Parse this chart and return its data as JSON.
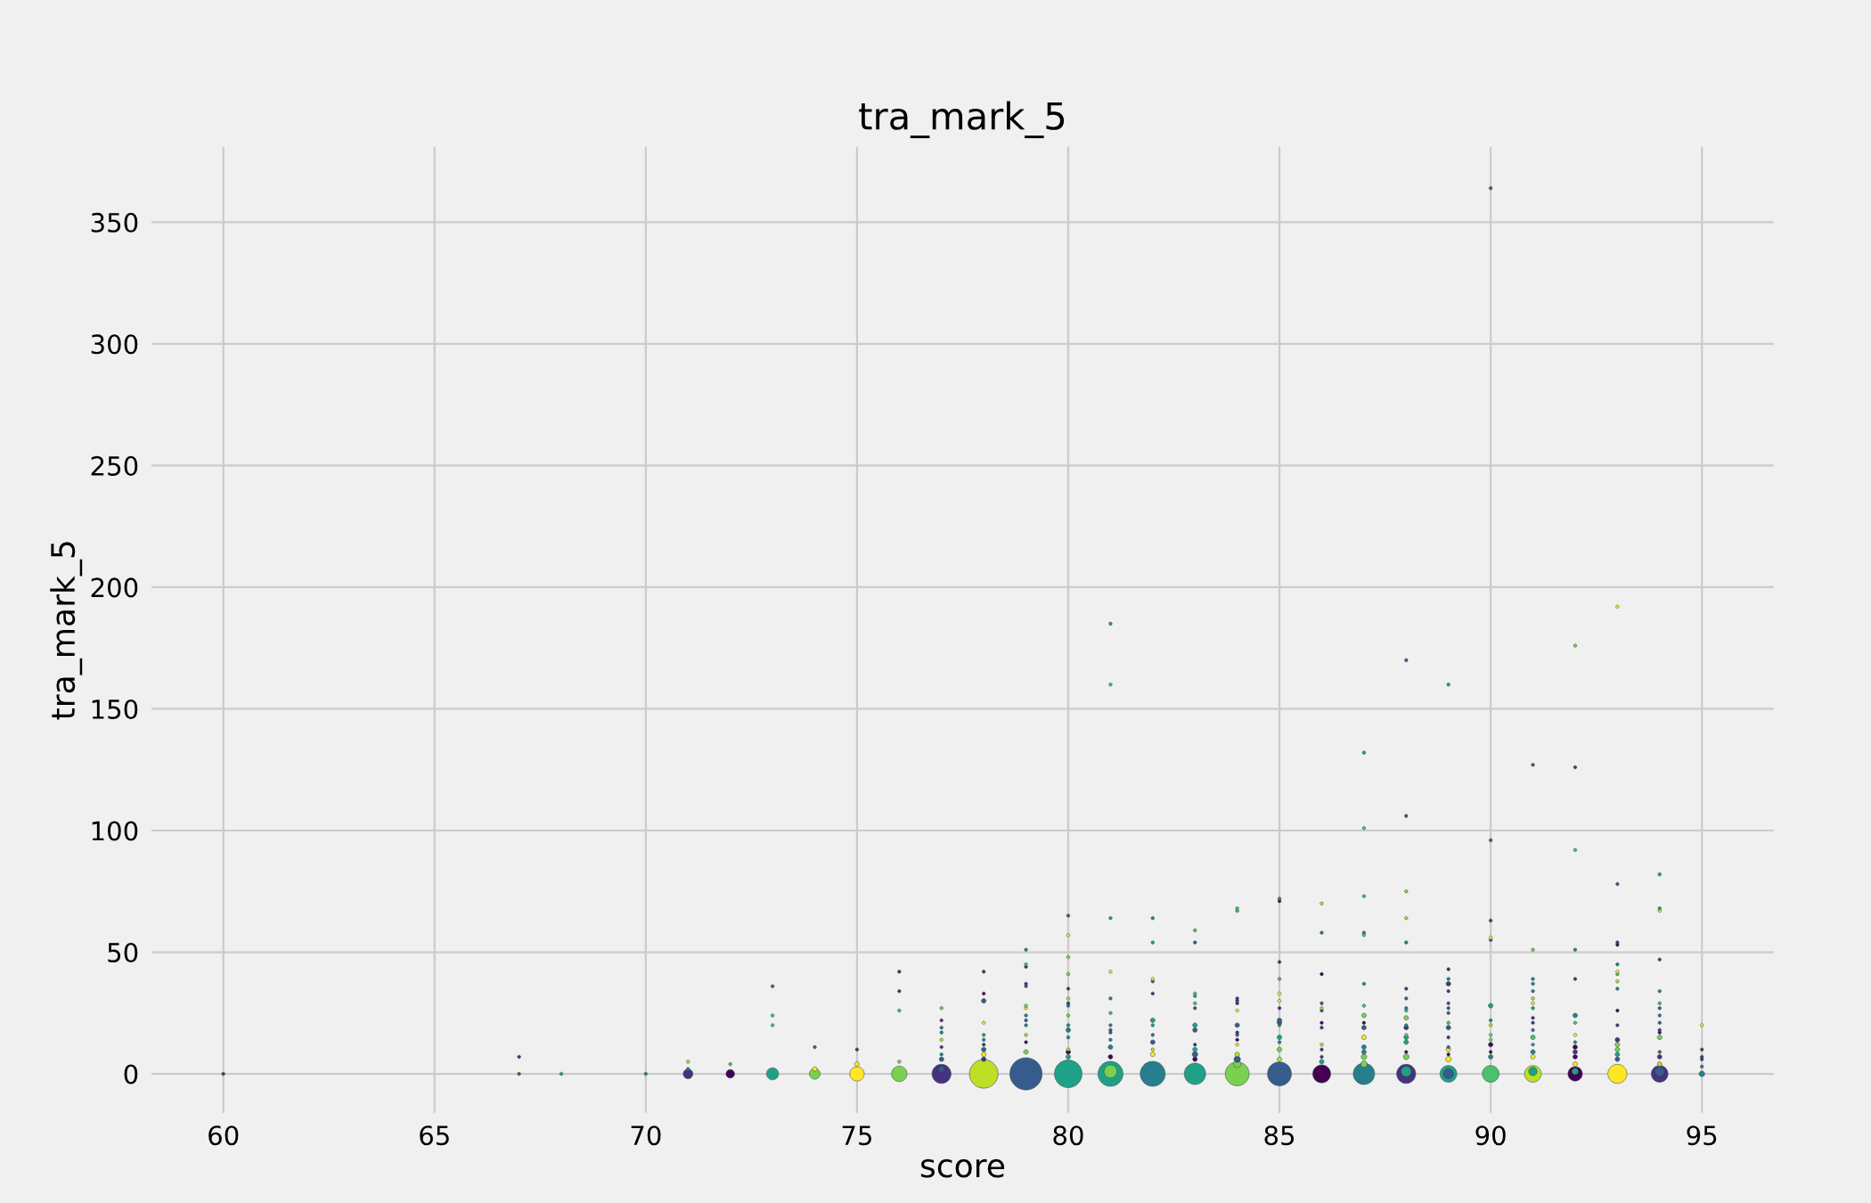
{
  "chart_data": {
    "type": "bubble",
    "title": "tra_mark_5",
    "xlabel": "score",
    "ylabel": "tra_mark_5",
    "xlim": [
      58.3,
      96.7
    ],
    "ylim": [
      -16,
      381
    ],
    "xticks": [
      60,
      65,
      70,
      75,
      80,
      85,
      90,
      95
    ],
    "yticks": [
      0,
      50,
      100,
      150,
      200,
      250,
      300,
      350
    ],
    "grid": true,
    "series": [
      {
        "x": [
          60
        ],
        "values": [
          0
        ],
        "sizes": [
          0.01
        ],
        "colors": [
          "#46327e"
        ]
      },
      {
        "x": [
          67,
          67
        ],
        "values": [
          0,
          7
        ],
        "sizes": [
          0.01,
          0.01
        ],
        "colors": [
          "#365c8d",
          "#46327e"
        ]
      },
      {
        "x": [
          68
        ],
        "values": [
          0
        ],
        "sizes": [
          0.01
        ],
        "colors": [
          "#1fa187"
        ]
      },
      {
        "x": [
          70
        ],
        "values": [
          0
        ],
        "sizes": [
          0.01
        ],
        "colors": [
          "#277f8e"
        ]
      },
      {
        "x": [
          71,
          71,
          71
        ],
        "values": [
          0,
          2,
          5
        ],
        "sizes": [
          0.09,
          0.01,
          0.01
        ],
        "colors": [
          "#46327e",
          "#277f8e",
          "#bddf26"
        ]
      },
      {
        "x": [
          72,
          72
        ],
        "values": [
          0,
          4
        ],
        "sizes": [
          0.07,
          0.01
        ],
        "colors": [
          "#440154",
          "#4ac16d"
        ]
      },
      {
        "x": [
          73,
          73,
          73,
          73
        ],
        "values": [
          0,
          36,
          24,
          20
        ],
        "sizes": [
          0.14,
          0.01,
          0.01,
          0.01
        ],
        "colors": [
          "#1fa187",
          "#365c8d",
          "#4ac16d",
          "#4ac16d"
        ]
      },
      {
        "x": [
          74,
          74,
          74
        ],
        "values": [
          0,
          2,
          11
        ],
        "sizes": [
          0.11,
          0.02,
          0.01
        ],
        "colors": [
          "#7ad151",
          "#fde725",
          "#365c8d"
        ]
      },
      {
        "x": [
          75,
          75,
          75
        ],
        "values": [
          0,
          4,
          10
        ],
        "sizes": [
          0.2,
          0.02,
          0.01
        ],
        "colors": [
          "#fde725",
          "#fde725",
          "#46327e"
        ]
      },
      {
        "x": [
          76,
          76,
          76,
          76,
          76
        ],
        "values": [
          0,
          5,
          26,
          34,
          42
        ],
        "sizes": [
          0.23,
          0.01,
          0.01,
          0.01,
          0.01
        ],
        "colors": [
          "#7ad151",
          "#7ad151",
          "#4ac16d",
          "#46327e",
          "#46327e"
        ]
      },
      {
        "x": [
          77,
          77,
          77,
          77,
          77,
          77,
          77,
          77,
          77,
          77
        ],
        "values": [
          0,
          2,
          6,
          8,
          11,
          14,
          17,
          19,
          22,
          27
        ],
        "sizes": [
          0.35,
          0.03,
          0.02,
          0.01,
          0.01,
          0.01,
          0.01,
          0.01,
          0.01,
          0.01
        ],
        "colors": [
          "#46327e",
          "#365c8d",
          "#365c8d",
          "#277f8e",
          "#46327e",
          "#bddf26",
          "#277f8e",
          "#277f8e",
          "#46327e",
          "#7ad151"
        ]
      },
      {
        "x": [
          78,
          78,
          78,
          78,
          78,
          78,
          78,
          78,
          78,
          78,
          78
        ],
        "values": [
          0,
          6,
          8,
          10,
          12,
          14,
          16,
          21,
          30,
          33,
          42
        ],
        "sizes": [
          0.79,
          0.02,
          0.02,
          0.02,
          0.01,
          0.01,
          0.01,
          0.01,
          0.02,
          0.01,
          0.01
        ],
        "colors": [
          "#bddf26",
          "#46327e",
          "#fde725",
          "#365c8d",
          "#46327e",
          "#277f8e",
          "#1fa187",
          "#fde725",
          "#365c8d",
          "#440154",
          "#46327e"
        ]
      },
      {
        "x": [
          79,
          79,
          79,
          79,
          79,
          79,
          79,
          79,
          79,
          79,
          79,
          79,
          79,
          79
        ],
        "values": [
          0,
          9,
          13,
          16,
          20,
          22,
          24,
          27,
          28,
          36,
          37,
          44,
          45,
          51
        ],
        "sizes": [
          1,
          0.02,
          0.01,
          0.01,
          0.01,
          0.01,
          0.01,
          0.01,
          0.01,
          0.01,
          0.01,
          0.01,
          0.01,
          0.01
        ],
        "colors": [
          "#365c8d",
          "#7ad151",
          "#440154",
          "#bddf26",
          "#277f8e",
          "#365c8d",
          "#277f8e",
          "#fde725",
          "#7ad151",
          "#365c8d",
          "#46327e",
          "#46327e",
          "#4ac16d",
          "#277f8e"
        ]
      },
      {
        "x": [
          80,
          80,
          80,
          80,
          80,
          80,
          80,
          80,
          80,
          80,
          80,
          80,
          80,
          80,
          80,
          80
        ],
        "values": [
          0,
          7,
          9,
          10,
          15,
          18,
          20,
          24,
          28,
          29,
          31,
          35,
          41,
          48,
          57,
          65
        ],
        "sizes": [
          0.73,
          0.02,
          0.02,
          0.01,
          0.01,
          0.02,
          0.01,
          0.01,
          0.01,
          0.01,
          0.01,
          0.01,
          0.01,
          0.01,
          0.01,
          0.01
        ],
        "colors": [
          "#1fa187",
          "#1fa187",
          "#440154",
          "#bddf26",
          "#277f8e",
          "#277f8e",
          "#277f8e",
          "#7ad151",
          "#277f8e",
          "#46327e",
          "#bddf26",
          "#46327e",
          "#7ad151",
          "#7ad151",
          "#fde725",
          "#365c8d"
        ]
      },
      {
        "x": [
          81,
          81,
          81,
          81,
          81,
          81,
          81,
          81,
          81,
          81,
          81,
          81,
          81,
          81
        ],
        "values": [
          0,
          1,
          7,
          11,
          14,
          17,
          18,
          20,
          25,
          31,
          42,
          64,
          160,
          185
        ],
        "sizes": [
          0.6,
          0.16,
          0.02,
          0.02,
          0.01,
          0.01,
          0.01,
          0.01,
          0.01,
          0.01,
          0.01,
          0.01,
          0.01,
          0.01
        ],
        "colors": [
          "#1fa187",
          "#7ad151",
          "#440154",
          "#277f8e",
          "#277f8e",
          "#365c8d",
          "#365c8d",
          "#277f8e",
          "#4ac16d",
          "#277f8e",
          "#fde725",
          "#1fa187",
          "#4ac16d",
          "#1fa187"
        ]
      },
      {
        "x": [
          82,
          82,
          82,
          82,
          82,
          82,
          82,
          82,
          82,
          82,
          82,
          82
        ],
        "values": [
          0,
          8,
          10,
          13,
          16,
          20,
          22,
          33,
          38,
          39,
          54,
          64
        ],
        "sizes": [
          0.6,
          0.02,
          0.01,
          0.02,
          0.01,
          0.01,
          0.02,
          0.01,
          0.01,
          0.01,
          0.01,
          0.01
        ],
        "colors": [
          "#277f8e",
          "#fde725",
          "#bddf26",
          "#365c8d",
          "#277f8e",
          "#1fa187",
          "#1fa187",
          "#46327e",
          "#365c8d",
          "#fde725",
          "#1fa187",
          "#277f8e"
        ]
      },
      {
        "x": [
          83,
          83,
          83,
          83,
          83,
          83,
          83,
          83,
          83,
          83,
          83,
          83,
          83
        ],
        "values": [
          0,
          6,
          8,
          10,
          12,
          18,
          20,
          27,
          29,
          32,
          33,
          54,
          59
        ],
        "sizes": [
          0.44,
          0.02,
          0.03,
          0.02,
          0.01,
          0.02,
          0.02,
          0.01,
          0.01,
          0.01,
          0.01,
          0.01,
          0.01
        ],
        "colors": [
          "#1fa187",
          "#440154",
          "#365c8d",
          "#1fa187",
          "#46327e",
          "#365c8d",
          "#1fa187",
          "#365c8d",
          "#4ac16d",
          "#1fa187",
          "#4ac16d",
          "#365c8d",
          "#4ac16d"
        ]
      },
      {
        "x": [
          84,
          84,
          84,
          84,
          84,
          84,
          84,
          84,
          84,
          84,
          84,
          84,
          84,
          84,
          84
        ],
        "values": [
          0,
          4,
          6,
          8,
          12,
          14,
          16,
          17,
          20,
          26,
          29,
          30,
          31,
          67,
          68
        ],
        "sizes": [
          0.55,
          0.05,
          0.04,
          0.02,
          0.01,
          0.01,
          0.01,
          0.01,
          0.02,
          0.01,
          0.01,
          0.01,
          0.01,
          0.01,
          0.01
        ],
        "colors": [
          "#7ad151",
          "#7ad151",
          "#365c8d",
          "#bddf26",
          "#fde725",
          "#440154",
          "#365c8d",
          "#46327e",
          "#365c8d",
          "#fde725",
          "#46327e",
          "#46327e",
          "#46327e",
          "#4ac16d",
          "#4ac16d"
        ]
      },
      {
        "x": [
          85,
          85,
          85,
          85,
          85,
          85,
          85,
          85,
          85,
          85,
          85,
          85,
          85,
          85,
          85
        ],
        "values": [
          0,
          6,
          10,
          13,
          15,
          20,
          21,
          22,
          27,
          30,
          33,
          39,
          46,
          71,
          72
        ],
        "sizes": [
          0.55,
          0.02,
          0.02,
          0.01,
          0.02,
          0.01,
          0.02,
          0.02,
          0.01,
          0.01,
          0.01,
          0.01,
          0.01,
          0.01,
          0.01
        ],
        "colors": [
          "#365c8d",
          "#bddf26",
          "#7ad151",
          "#277f8e",
          "#1fa187",
          "#1fa187",
          "#365c8d",
          "#365c8d",
          "#46327e",
          "#fde725",
          "#fde725",
          "#4ac16d",
          "#46327e",
          "#440154",
          "#277f8e"
        ]
      },
      {
        "x": [
          86,
          86,
          86,
          86,
          86,
          86,
          86,
          86,
          86,
          86,
          86,
          86,
          86
        ],
        "values": [
          0,
          5,
          7,
          10,
          12,
          19,
          21,
          26,
          27,
          29,
          41,
          58,
          70
        ],
        "sizes": [
          0.31,
          0.02,
          0.01,
          0.01,
          0.01,
          0.01,
          0.01,
          0.01,
          0.01,
          0.01,
          0.01,
          0.01,
          0.01
        ],
        "colors": [
          "#440154",
          "#1fa187",
          "#46327e",
          "#46327e",
          "#bddf26",
          "#46327e",
          "#440154",
          "#365c8d",
          "#bddf26",
          "#365c8d",
          "#440154",
          "#277f8e",
          "#bddf26"
        ]
      },
      {
        "x": [
          87,
          87,
          87,
          87,
          87,
          87,
          87,
          87,
          87,
          87,
          87,
          87,
          87,
          87,
          87,
          87
        ],
        "values": [
          0,
          4,
          7,
          9,
          11,
          15,
          19,
          21,
          24,
          28,
          37,
          57,
          58,
          73,
          101,
          132
        ],
        "sizes": [
          0.44,
          0.04,
          0.03,
          0.02,
          0.02,
          0.02,
          0.02,
          0.01,
          0.02,
          0.01,
          0.01,
          0.01,
          0.01,
          0.01,
          0.01,
          0.01
        ],
        "colors": [
          "#277f8e",
          "#7ad151",
          "#7ad151",
          "#277f8e",
          "#277f8e",
          "#fde725",
          "#365c8d",
          "#440154",
          "#7ad151",
          "#4ac16d",
          "#277f8e",
          "#7ad151",
          "#277f8e",
          "#4ac16d",
          "#4ac16d",
          "#1fa187"
        ]
      },
      {
        "x": [
          88,
          88,
          88,
          88,
          88,
          88,
          88,
          88,
          88,
          88,
          88,
          88,
          88,
          88,
          88,
          88,
          88,
          88,
          88
        ],
        "values": [
          0,
          1,
          7,
          9,
          13,
          15,
          16,
          19,
          20,
          23,
          26,
          27,
          31,
          35,
          54,
          64,
          75,
          106,
          170
        ],
        "sizes": [
          0.35,
          0.1,
          0.03,
          0.01,
          0.02,
          0.02,
          0.01,
          0.02,
          0.01,
          0.02,
          0.01,
          0.01,
          0.01,
          0.01,
          0.01,
          0.01,
          0.01,
          0.01,
          0.01
        ],
        "colors": [
          "#46327e",
          "#1fa187",
          "#7ad151",
          "#440154",
          "#1fa187",
          "#1fa187",
          "#7ad151",
          "#46327e",
          "#277f8e",
          "#7ad151",
          "#4ac16d",
          "#277f8e",
          "#365c8d",
          "#46327e",
          "#277f8e",
          "#bddf26",
          "#7ad151",
          "#365c8d",
          "#365c8d"
        ]
      },
      {
        "x": [
          89,
          89,
          89,
          89,
          89,
          89,
          89,
          89,
          89,
          89,
          89,
          89,
          89,
          89,
          89,
          89,
          89
        ],
        "values": [
          0,
          0,
          6,
          8,
          10,
          11,
          15,
          19,
          21,
          25,
          27,
          29,
          34,
          37,
          39,
          43,
          160
        ],
        "sizes": [
          0.27,
          0.1,
          0.03,
          0.01,
          0.02,
          0.01,
          0.01,
          0.02,
          0.01,
          0.01,
          0.01,
          0.01,
          0.01,
          0.02,
          0.01,
          0.01,
          0.01
        ],
        "colors": [
          "#1fa187",
          "#365c8d",
          "#fde725",
          "#440154",
          "#fde725",
          "#365c8d",
          "#46327e",
          "#365c8d",
          "#4ac16d",
          "#365c8d",
          "#365c8d",
          "#365c8d",
          "#46327e",
          "#46327e",
          "#277f8e",
          "#46327e",
          "#1fa187"
        ]
      },
      {
        "x": [
          90,
          90,
          90,
          90,
          90,
          90,
          90,
          90,
          90,
          90,
          90,
          90,
          90,
          90
        ],
        "values": [
          0,
          7,
          9,
          12,
          14,
          16,
          20,
          22,
          28,
          55,
          56,
          63,
          96,
          364
        ],
        "sizes": [
          0.27,
          0.02,
          0.01,
          0.02,
          0.01,
          0.01,
          0.01,
          0.01,
          0.02,
          0.01,
          0.01,
          0.01,
          0.01,
          0.01
        ],
        "colors": [
          "#4ac16d",
          "#277f8e",
          "#440154",
          "#440154",
          "#7ad151",
          "#7ad151",
          "#bddf26",
          "#277f8e",
          "#1fa187",
          "#365c8d",
          "#fde725",
          "#46327e",
          "#365c8d",
          "#365c8d"
        ]
      },
      {
        "x": [
          91,
          91,
          91,
          91,
          91,
          91,
          91,
          91,
          91,
          91,
          91,
          91,
          91,
          91,
          91,
          91,
          91
        ],
        "values": [
          0,
          1,
          7,
          9,
          12,
          15,
          18,
          21,
          23,
          27,
          29,
          31,
          34,
          37,
          39,
          51,
          127
        ],
        "sizes": [
          0.27,
          0.07,
          0.02,
          0.02,
          0.01,
          0.02,
          0.01,
          0.01,
          0.01,
          0.01,
          0.01,
          0.01,
          0.01,
          0.01,
          0.01,
          0.01,
          0.01
        ],
        "colors": [
          "#bddf26",
          "#1fa187",
          "#fde725",
          "#277f8e",
          "#1fa187",
          "#4ac16d",
          "#277f8e",
          "#46327e",
          "#46327e",
          "#1fa187",
          "#fde725",
          "#bddf26",
          "#277f8e",
          "#277f8e",
          "#277f8e",
          "#7ad151",
          "#365c8d"
        ]
      },
      {
        "x": [
          92,
          92,
          92,
          92,
          92,
          92,
          92,
          92,
          92,
          92,
          92,
          92,
          92,
          92,
          92
        ],
        "values": [
          0,
          1,
          4,
          7,
          9,
          11,
          13,
          16,
          21,
          24,
          39,
          51,
          92,
          126,
          176
        ],
        "sizes": [
          0.2,
          0.04,
          0.02,
          0.02,
          0.02,
          0.02,
          0.01,
          0.01,
          0.01,
          0.02,
          0.01,
          0.01,
          0.01,
          0.01,
          0.01
        ],
        "colors": [
          "#440154",
          "#1fa187",
          "#fde725",
          "#440154",
          "#46327e",
          "#440154",
          "#277f8e",
          "#fde725",
          "#4ac16d",
          "#277f8e",
          "#46327e",
          "#277f8e",
          "#4ac16d",
          "#46327e",
          "#7ad151"
        ]
      },
      {
        "x": [
          93,
          93,
          93,
          93,
          93,
          93,
          93,
          93,
          93,
          93,
          93,
          93,
          93,
          93,
          93,
          93,
          93
        ],
        "values": [
          0,
          6,
          8,
          10,
          12,
          14,
          20,
          26,
          35,
          38,
          41,
          42,
          45,
          53,
          54,
          78,
          192
        ],
        "sizes": [
          0.35,
          0.02,
          0.02,
          0.02,
          0.02,
          0.02,
          0.01,
          0.01,
          0.01,
          0.01,
          0.01,
          0.01,
          0.01,
          0.01,
          0.01,
          0.01,
          0.01
        ],
        "colors": [
          "#fde725",
          "#365c8d",
          "#1fa187",
          "#7ad151",
          "#7ad151",
          "#46327e",
          "#46327e",
          "#440154",
          "#277f8e",
          "#bddf26",
          "#4ac16d",
          "#fde725",
          "#277f8e",
          "#440154",
          "#46327e",
          "#365c8d",
          "#fde725"
        ]
      },
      {
        "x": [
          94,
          94,
          94,
          94,
          94,
          94,
          94,
          94,
          94,
          94,
          94,
          94,
          94,
          94,
          94,
          94,
          94
        ],
        "values": [
          0,
          1,
          4,
          7,
          9,
          15,
          17,
          18,
          21,
          24,
          27,
          29,
          34,
          47,
          67,
          68,
          82
        ],
        "sizes": [
          0.27,
          0.08,
          0.02,
          0.02,
          0.01,
          0.02,
          0.01,
          0.01,
          0.01,
          0.01,
          0.01,
          0.01,
          0.01,
          0.01,
          0.01,
          0.01,
          0.01
        ],
        "colors": [
          "#46327e",
          "#365c8d",
          "#bddf26",
          "#46327e",
          "#365c8d",
          "#7ad151",
          "#440154",
          "#46327e",
          "#365c8d",
          "#277f8e",
          "#365c8d",
          "#4ac16d",
          "#277f8e",
          "#46327e",
          "#fde725",
          "#1fa187",
          "#1fa187"
        ]
      },
      {
        "x": [
          95,
          95,
          95,
          95,
          95,
          95
        ],
        "values": [
          0,
          3,
          6,
          7,
          10,
          20
        ],
        "sizes": [
          0.03,
          0.01,
          0.01,
          0.01,
          0.01,
          0.01
        ],
        "colors": [
          "#277f8e",
          "#277f8e",
          "#46327e",
          "#46327e",
          "#46327e",
          "#fde725"
        ]
      }
    ]
  }
}
